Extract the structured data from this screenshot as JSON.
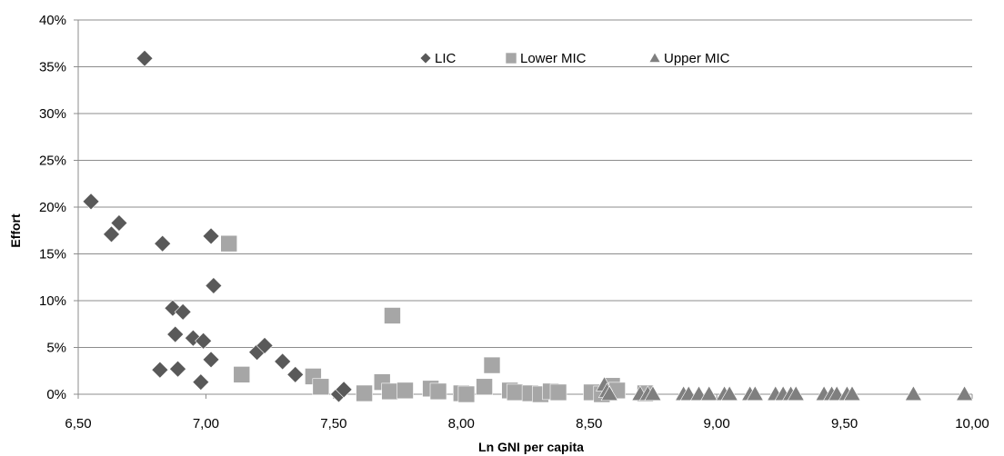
{
  "chart_data": {
    "type": "scatter",
    "title": "",
    "xlabel": "Ln GNI per capita",
    "ylabel": "Effort",
    "xlim": [
      6.5,
      10.0
    ],
    "ylim": [
      0,
      0.4
    ],
    "x_ticks": [
      "6,50",
      "7,00",
      "7,50",
      "8,00",
      "8,50",
      "9,00",
      "9,50",
      "10,00"
    ],
    "y_ticks": [
      "0%",
      "5%",
      "10%",
      "15%",
      "20%",
      "25%",
      "30%",
      "35%",
      "40%"
    ],
    "grid": "horizontal",
    "legend_position": "top-center",
    "series": [
      {
        "name": "LIC",
        "marker": "diamond",
        "color": "#595959",
        "points": [
          [
            6.55,
            0.206
          ],
          [
            6.63,
            0.171
          ],
          [
            6.66,
            0.183
          ],
          [
            6.76,
            0.359
          ],
          [
            6.82,
            0.026
          ],
          [
            6.83,
            0.161
          ],
          [
            6.87,
            0.092
          ],
          [
            6.88,
            0.064
          ],
          [
            6.89,
            0.027
          ],
          [
            6.91,
            0.088
          ],
          [
            6.95,
            0.06
          ],
          [
            6.98,
            0.013
          ],
          [
            6.99,
            0.057
          ],
          [
            7.02,
            0.037
          ],
          [
            7.02,
            0.169
          ],
          [
            7.03,
            0.116
          ],
          [
            7.2,
            0.045
          ],
          [
            7.23,
            0.052
          ],
          [
            7.3,
            0.035
          ],
          [
            7.35,
            0.021
          ],
          [
            7.52,
            0.0
          ],
          [
            7.54,
            0.005
          ]
        ]
      },
      {
        "name": "Lower MIC",
        "marker": "square",
        "color": "#a6a6a6",
        "points": [
          [
            7.09,
            0.161
          ],
          [
            7.14,
            0.021
          ],
          [
            7.42,
            0.019
          ],
          [
            7.45,
            0.008
          ],
          [
            7.62,
            0.001
          ],
          [
            7.69,
            0.013
          ],
          [
            7.72,
            0.003
          ],
          [
            7.73,
            0.084
          ],
          [
            7.78,
            0.004
          ],
          [
            7.88,
            0.006
          ],
          [
            7.91,
            0.003
          ],
          [
            8.0,
            0.001
          ],
          [
            8.02,
            0.0
          ],
          [
            8.09,
            0.008
          ],
          [
            8.12,
            0.031
          ],
          [
            8.19,
            0.004
          ],
          [
            8.21,
            0.002
          ],
          [
            8.27,
            0.001
          ],
          [
            8.31,
            0.0
          ],
          [
            8.35,
            0.003
          ],
          [
            8.38,
            0.002
          ],
          [
            8.51,
            0.002
          ],
          [
            8.55,
            0.0
          ],
          [
            8.59,
            0.009
          ],
          [
            8.61,
            0.004
          ],
          [
            8.72,
            0.001
          ]
        ]
      },
      {
        "name": "Upper MIC",
        "marker": "triangle",
        "color": "#7f7f7f",
        "points": [
          [
            8.56,
            0.01
          ],
          [
            8.57,
            0.003
          ],
          [
            8.58,
            0.0
          ],
          [
            8.7,
            0.0
          ],
          [
            8.73,
            0.0
          ],
          [
            8.75,
            0.0
          ],
          [
            8.87,
            0.0
          ],
          [
            8.89,
            0.0
          ],
          [
            8.93,
            0.0
          ],
          [
            8.97,
            0.0
          ],
          [
            9.03,
            0.0
          ],
          [
            9.05,
            0.0
          ],
          [
            9.13,
            0.0
          ],
          [
            9.15,
            0.0
          ],
          [
            9.23,
            0.0
          ],
          [
            9.26,
            0.0
          ],
          [
            9.29,
            0.0
          ],
          [
            9.31,
            0.0
          ],
          [
            9.42,
            0.0
          ],
          [
            9.45,
            0.0
          ],
          [
            9.47,
            0.0
          ],
          [
            9.51,
            0.0
          ],
          [
            9.53,
            0.0
          ],
          [
            9.77,
            0.0
          ],
          [
            9.97,
            0.0
          ]
        ]
      }
    ]
  }
}
